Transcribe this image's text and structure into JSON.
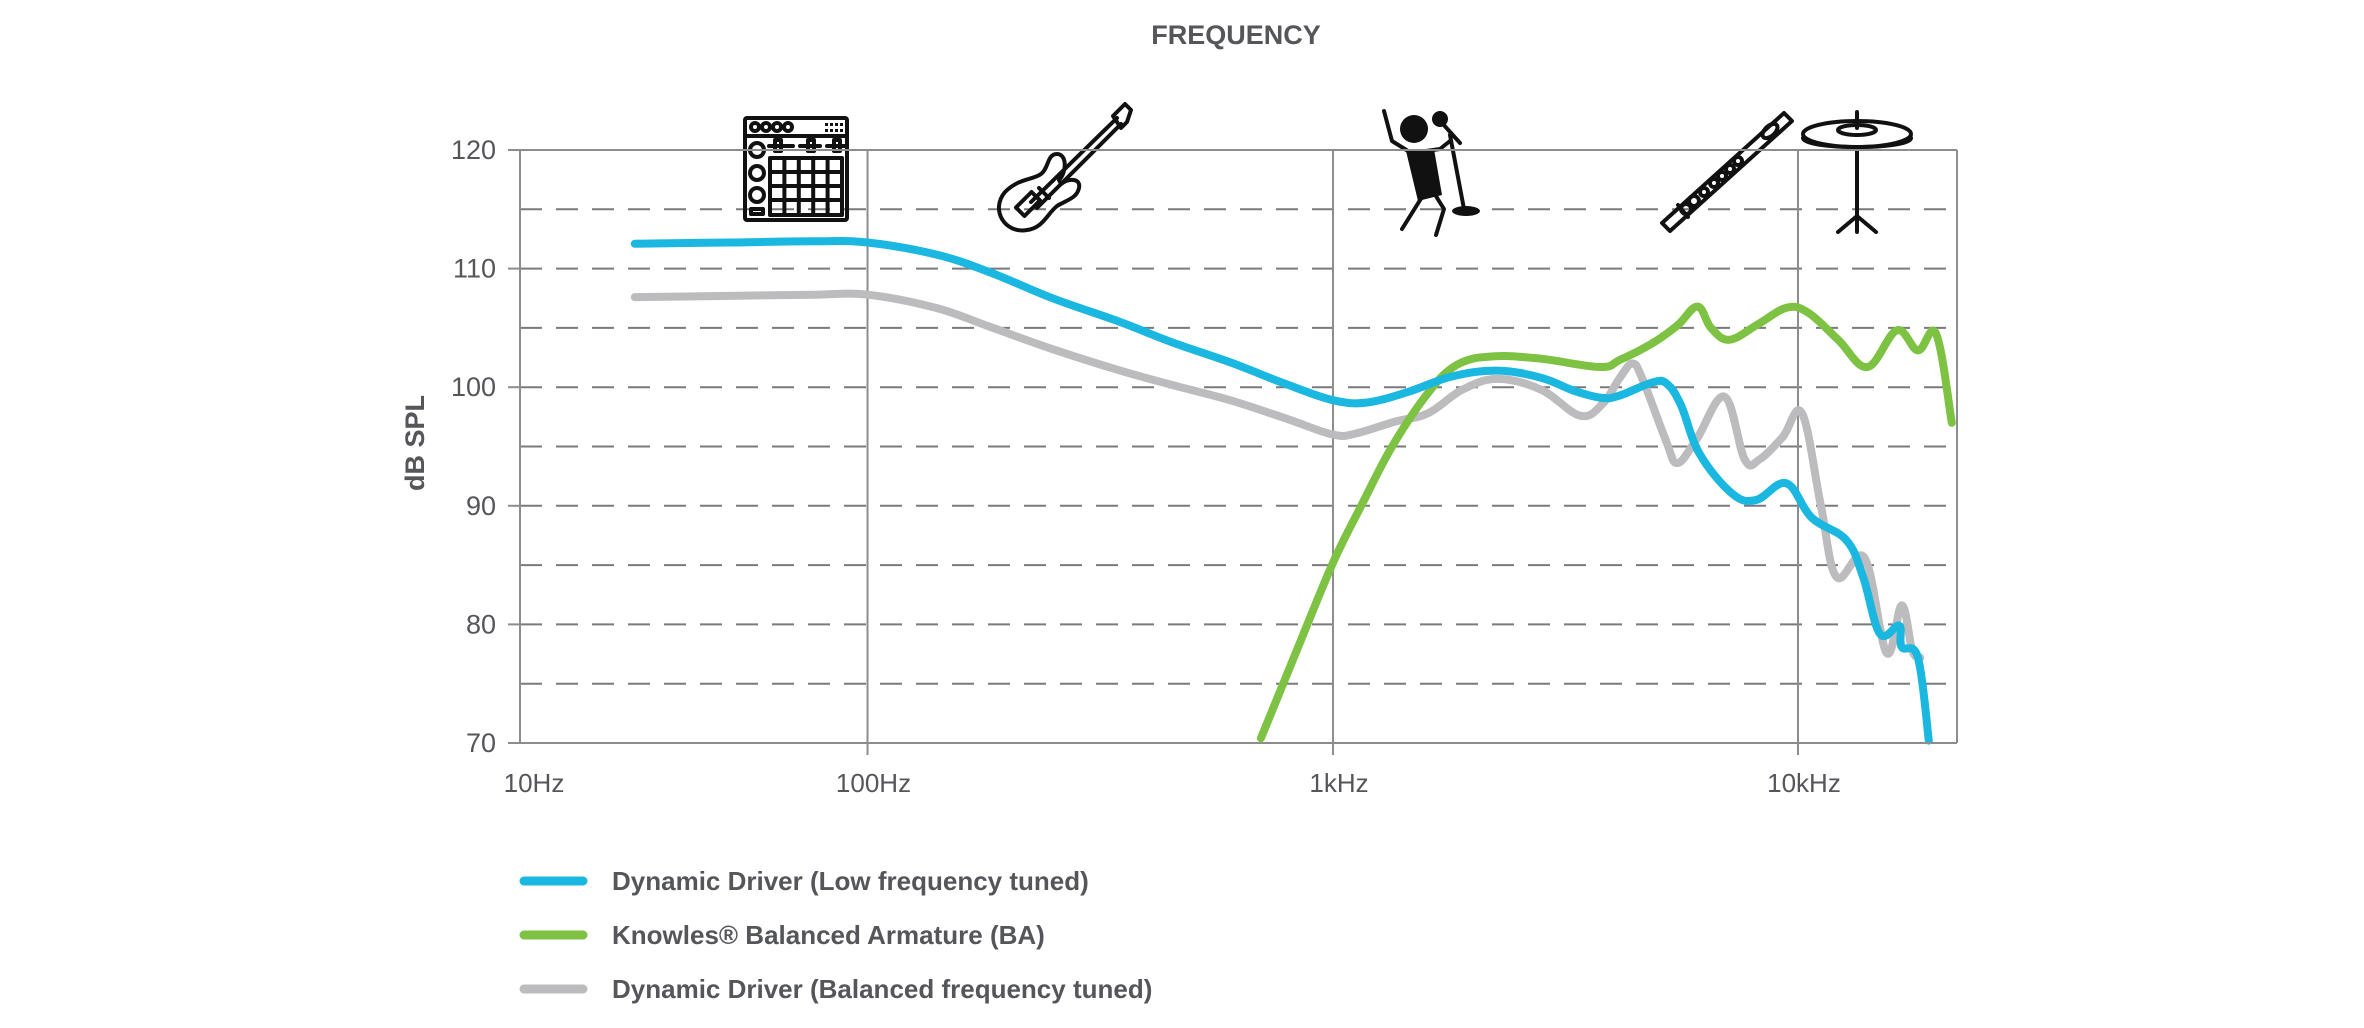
{
  "chart_data": {
    "type": "line",
    "title": "FREQUENCY",
    "xlabel": "",
    "ylabel": "dB SPL",
    "xscale": "log",
    "xticks": [
      {
        "value": 10,
        "label": "10Hz"
      },
      {
        "value": 100,
        "label": "100Hz"
      },
      {
        "value": 1000,
        "label": "1kHz"
      },
      {
        "value": 10000,
        "label": "10kHz"
      }
    ],
    "xlim": [
      10,
      21900
    ],
    "ylim": [
      70,
      120
    ],
    "yticks": [
      {
        "value": 120,
        "label": "120"
      },
      {
        "value": 110,
        "label": "110"
      },
      {
        "value": 100,
        "label": "100"
      },
      {
        "value": 90,
        "label": "90"
      },
      {
        "value": 80,
        "label": "80"
      },
      {
        "value": 70,
        "label": "70"
      }
    ],
    "minor_grid_values": [
      115,
      105,
      95,
      85,
      75
    ],
    "grid": true,
    "legend_position": "bottom-left",
    "series": [
      {
        "name": "Dynamic Driver (Low frequency tuned)",
        "color": "#1ab7e0",
        "points": [
          [
            21.4,
            112.1
          ],
          [
            40,
            112.2
          ],
          [
            70,
            112.3
          ],
          [
            100,
            112.2
          ],
          [
            140,
            111.2
          ],
          [
            183,
            109.7
          ],
          [
            250,
            107.5
          ],
          [
            349,
            105.5
          ],
          [
            450,
            103.8
          ],
          [
            601,
            102.1
          ],
          [
            800,
            100.2
          ],
          [
            1000,
            98.9
          ],
          [
            1180,
            98.7
          ],
          [
            1450,
            99.6
          ],
          [
            1800,
            100.9
          ],
          [
            2250,
            101.4
          ],
          [
            2800,
            100.8
          ],
          [
            3300,
            99.7
          ],
          [
            3790,
            99.1
          ],
          [
            4140,
            99.3
          ],
          [
            4860,
            100.4
          ],
          [
            5220,
            100.3
          ],
          [
            5600,
            98.5
          ],
          [
            6140,
            94.4
          ],
          [
            7230,
            91.0
          ],
          [
            8140,
            90.5
          ],
          [
            9440,
            91.9
          ],
          [
            10700,
            89.0
          ],
          [
            12700,
            87.1
          ],
          [
            13800,
            84.0
          ],
          [
            15000,
            79.2
          ],
          [
            16500,
            79.9
          ],
          [
            16700,
            78.1
          ],
          [
            18100,
            77.2
          ],
          [
            19100,
            70.2
          ]
        ]
      },
      {
        "name": "Knowles® Balanced Armature (BA)",
        "color": "#7dc242",
        "points": [
          [
            700,
            70.4
          ],
          [
            850,
            78.5
          ],
          [
            1000,
            85.2
          ],
          [
            1150,
            90.0
          ],
          [
            1340,
            95.0
          ],
          [
            1600,
            99.5
          ],
          [
            1850,
            101.9
          ],
          [
            2210,
            102.6
          ],
          [
            2800,
            102.4
          ],
          [
            3750,
            101.7
          ],
          [
            4140,
            102.3
          ],
          [
            4860,
            103.7
          ],
          [
            5500,
            105.2
          ],
          [
            6080,
            106.8
          ],
          [
            6500,
            105.0
          ],
          [
            7120,
            104.0
          ],
          [
            8200,
            105.3
          ],
          [
            9440,
            106.7
          ],
          [
            10500,
            106.3
          ],
          [
            12200,
            104.0
          ],
          [
            14100,
            101.7
          ],
          [
            16300,
            104.8
          ],
          [
            18100,
            103.1
          ],
          [
            19800,
            104.5
          ],
          [
            21400,
            97.0
          ]
        ]
      },
      {
        "name": "Dynamic Driver (Balanced frequency tuned)",
        "color": "#bcbcbe",
        "points": [
          [
            21.4,
            107.6
          ],
          [
            40,
            107.7
          ],
          [
            70,
            107.8
          ],
          [
            100,
            107.8
          ],
          [
            140,
            106.7
          ],
          [
            183,
            105.1
          ],
          [
            250,
            103.2
          ],
          [
            349,
            101.4
          ],
          [
            450,
            100.2
          ],
          [
            601,
            98.9
          ],
          [
            800,
            97.3
          ],
          [
            1000,
            96.0
          ],
          [
            1120,
            96.1
          ],
          [
            1360,
            97.1
          ],
          [
            1600,
            97.8
          ],
          [
            1900,
            99.8
          ],
          [
            2260,
            100.7
          ],
          [
            2800,
            99.8
          ],
          [
            3400,
            97.6
          ],
          [
            3800,
            98.6
          ],
          [
            4140,
            100.8
          ],
          [
            4410,
            102.0
          ],
          [
            4640,
            100.6
          ],
          [
            5200,
            95.5
          ],
          [
            5500,
            93.6
          ],
          [
            6050,
            95.6
          ],
          [
            6950,
            99.2
          ],
          [
            7680,
            93.9
          ],
          [
            8260,
            93.9
          ],
          [
            9270,
            95.8
          ],
          [
            10200,
            97.8
          ],
          [
            11200,
            90.0
          ],
          [
            12100,
            84.0
          ],
          [
            13900,
            85.6
          ],
          [
            15500,
            77.6
          ],
          [
            16700,
            81.6
          ],
          [
            17600,
            77.8
          ],
          [
            18300,
            77.2
          ]
        ]
      }
    ],
    "annotations": [
      {
        "icon": "drum-machine-icon",
        "frequency_label": "bass / beats"
      },
      {
        "icon": "bass-guitar-icon",
        "frequency_label": "bass guitar"
      },
      {
        "icon": "singer-icon",
        "frequency_label": "vocals"
      },
      {
        "icon": "flute-icon",
        "frequency_label": "flute"
      },
      {
        "icon": "cymbal-icon",
        "frequency_label": "cymbals"
      }
    ]
  }
}
